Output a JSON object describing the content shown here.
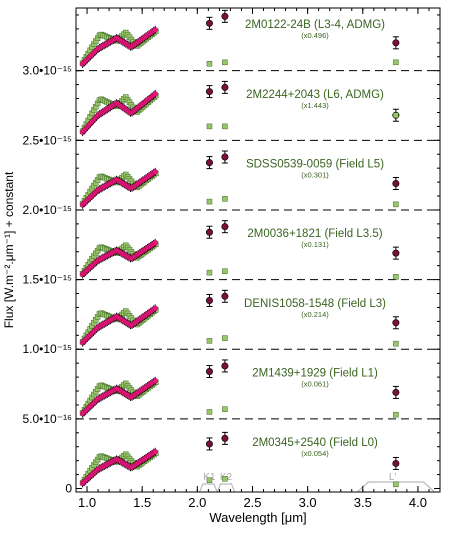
{
  "chart_data": {
    "type": "scatter",
    "xlabel": "Wavelength [μm]",
    "ylabel": "Flux [W.m⁻².μm⁻¹] + constant",
    "xlim": [
      0.9,
      4.2
    ],
    "ylim": [
      -2.5e-17,
      3.45e-15
    ],
    "x_ticks": [
      1.0,
      1.5,
      2.0,
      2.5,
      3.0,
      3.5,
      4.0
    ],
    "x_tick_labels": [
      "1.0",
      "1.5",
      "2.0",
      "2.5",
      "3.0",
      "3.5",
      "4.0"
    ],
    "y_ticks": [
      0,
      5e-16,
      1e-15,
      1.5e-15,
      2e-15,
      2.5e-15,
      3e-15
    ],
    "y_tick_labels": [
      "0",
      "5.0•10⁻¹⁶",
      "1.0•10⁻¹⁵",
      "1.5•10⁻¹⁵",
      "2.0•10⁻¹⁵",
      "2.5•10⁻¹⁵",
      "3.0•10⁻¹⁵"
    ],
    "offset_lines": [
      5e-16,
      1e-15,
      1.5e-15,
      2e-15,
      2.5e-15,
      3e-15
    ],
    "filter_labels": [
      "K1",
      "K2",
      "L'"
    ],
    "colors": {
      "observed": "#e8157b",
      "model": "#9ac66a",
      "model_edge": "#3d6b25",
      "photometry": "#7a0f3c",
      "label": "#3a6420",
      "errorbar": "#000000"
    },
    "photometry_x": [
      2.11,
      2.25,
      3.8
    ],
    "objects": [
      {
        "name": "2M0345+2540 (Field L0)",
        "scale": "(x0.054)",
        "offset": 0,
        "start": 3e-17,
        "nir_peak": 2.4e-16,
        "k_level": 2.6e-16,
        "phot": [
          3.2e-16,
          3.6e-16,
          1.8e-16
        ],
        "model_phot": [
          6e-17,
          7e-17,
          3e-17
        ]
      },
      {
        "name": "2M1439+1929 (Field L1)",
        "scale": "(x0.061)",
        "offset": 5e-16,
        "start": 3e-17,
        "nir_peak": 2.5e-16,
        "k_level": 2.6e-16,
        "phot": [
          3.4e-16,
          3.8e-16,
          1.9e-16
        ],
        "model_phot": [
          5e-17,
          7e-17,
          3e-17
        ]
      },
      {
        "name": "DENIS1058-1548 (Field L3)",
        "scale": "(x0.214)",
        "offset": 1e-15,
        "start": 4e-17,
        "nir_peak": 2.6e-16,
        "k_level": 2.7e-16,
        "phot": [
          3.5e-16,
          3.8e-16,
          1.9e-16
        ],
        "model_phot": [
          6e-17,
          8e-17,
          4e-17
        ]
      },
      {
        "name": "2M0036+1821 (Field L3.5)",
        "scale": "(x0.131)",
        "offset": 1.5e-15,
        "start": 3e-17,
        "nir_peak": 2.4e-16,
        "k_level": 2.6e-16,
        "phot": [
          3.4e-16,
          3.8e-16,
          1.9e-16
        ],
        "model_phot": [
          5e-17,
          6e-17,
          2e-17
        ]
      },
      {
        "name": "SDSS0539-0059 (Field L5)",
        "scale": "(x0.301)",
        "offset": 2e-15,
        "start": 3e-17,
        "nir_peak": 2.5e-16,
        "k_level": 2.7e-16,
        "phot": [
          3.4e-16,
          3.8e-16,
          1.9e-16
        ],
        "model_phot": [
          6e-17,
          8e-17,
          4e-17
        ]
      },
      {
        "name": "2M2244+2043 (L6, ADMG)",
        "scale": "(x1.443)",
        "offset": 2.5e-15,
        "start": 5e-17,
        "nir_peak": 2.9e-16,
        "k_level": 2.9e-16,
        "phot": [
          3.5e-16,
          3.8e-16,
          1.8e-16
        ],
        "model_phot": [
          1e-16,
          1e-16,
          1.8e-16
        ]
      },
      {
        "name": "2M0122-24B (L3-4, ADMG)",
        "scale": "(x0.496)",
        "offset": 3e-15,
        "start": 4e-17,
        "nir_peak": 2.6e-16,
        "k_level": 2.8e-16,
        "phot": [
          3.4e-16,
          3.9e-16,
          2e-16
        ],
        "model_phot": [
          5e-17,
          6e-17,
          6e-17
        ]
      }
    ]
  }
}
